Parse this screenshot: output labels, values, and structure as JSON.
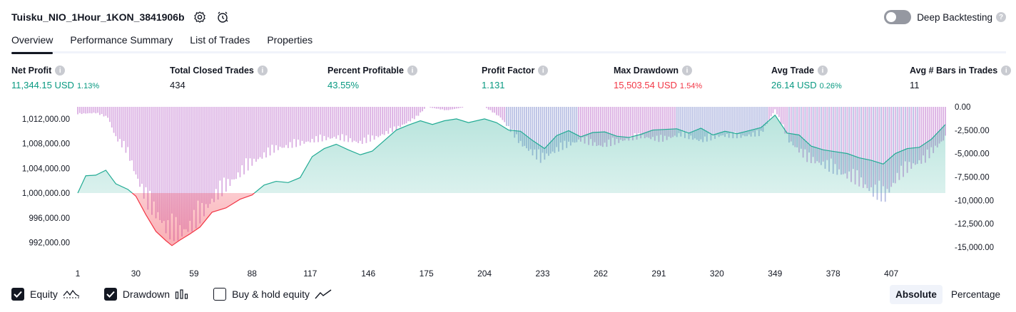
{
  "header": {
    "strategy_name": "Tuisku_NIO_1Hour_1KON_3841906b",
    "deep_backtesting_label": "Deep Backtesting",
    "deep_backtesting_enabled": false
  },
  "tabs": [
    {
      "label": "Overview",
      "active": true
    },
    {
      "label": "Performance Summary",
      "active": false
    },
    {
      "label": "List of Trades",
      "active": false
    },
    {
      "label": "Properties",
      "active": false
    }
  ],
  "metrics": {
    "net_profit": {
      "label": "Net Profit",
      "value": "11,344.15 USD",
      "percent": "1.13%"
    },
    "total_closed_trades": {
      "label": "Total Closed Trades",
      "value": "434"
    },
    "percent_profitable": {
      "label": "Percent Profitable",
      "value": "43.55%"
    },
    "profit_factor": {
      "label": "Profit Factor",
      "value": "1.131"
    },
    "max_drawdown": {
      "label": "Max Drawdown",
      "value": "15,503.54 USD",
      "percent": "1.54%"
    },
    "avg_trade": {
      "label": "Avg Trade",
      "value": "26.14 USD",
      "percent": "0.26%"
    },
    "avg_bars": {
      "label": "Avg # Bars in Trades",
      "value": "11"
    }
  },
  "colors": {
    "positive": "#089981",
    "negative": "#f23645",
    "drawdown_bar": "#ce93d8",
    "drawdown_bar_blue": "#9fa8da",
    "equity_line_up": "#22ab94",
    "equity_line_down": "#f23645"
  },
  "chart_data": {
    "type": "area",
    "left_axis": {
      "label": "Equity",
      "tick_labels": [
        "1,012,000.00",
        "1,008,000.00",
        "1,004,000.00",
        "1,000,000.00",
        "996,000.00",
        "992,000.00"
      ],
      "ticks": [
        1012000,
        1008000,
        1004000,
        1000000,
        996000,
        992000
      ],
      "ylim": [
        989750,
        1013950
      ],
      "baseline": 1000000
    },
    "right_axis": {
      "label": "Drawdown",
      "tick_labels": [
        "0.00",
        "-2,500.00",
        "-5,000.00",
        "-7,500.00",
        "-10,000.00",
        "-12,500.00",
        "-15,000.00"
      ],
      "ticks": [
        0,
        -2500,
        -5000,
        -7500,
        -10000,
        -12500,
        -15000
      ],
      "ylim": [
        -16000,
        0
      ]
    },
    "x_axis": {
      "tick_labels": [
        "1",
        "30",
        "59",
        "88",
        "117",
        "146",
        "175",
        "204",
        "233",
        "262",
        "291",
        "320",
        "349",
        "378",
        "407"
      ],
      "ticks": [
        1,
        30,
        59,
        88,
        117,
        146,
        175,
        204,
        233,
        262,
        291,
        320,
        349,
        378,
        407
      ],
      "xlim": [
        1,
        434
      ]
    },
    "series": [
      {
        "name": "Equity",
        "x": [
          1,
          5,
          10,
          15,
          20,
          26,
          30,
          35,
          40,
          45,
          48,
          52,
          57,
          62,
          68,
          75,
          82,
          88,
          94,
          100,
          106,
          112,
          118,
          124,
          130,
          136,
          142,
          148,
          154,
          160,
          166,
          172,
          178,
          184,
          190,
          196,
          204,
          210,
          216,
          222,
          228,
          234,
          240,
          246,
          252,
          258,
          264,
          270,
          276,
          282,
          288,
          294,
          300,
          306,
          312,
          318,
          324,
          330,
          336,
          342,
          349,
          355,
          361,
          367,
          373,
          379,
          385,
          391,
          397,
          403,
          409,
          415,
          421,
          427,
          434
        ],
        "values": [
          1000000,
          1002800,
          1002900,
          1003700,
          1001500,
          1000600,
          999500,
          996500,
          993800,
          992300,
          991500,
          992400,
          993400,
          994500,
          996900,
          997600,
          999000,
          999700,
          1001300,
          1001900,
          1001700,
          1002500,
          1005900,
          1007200,
          1007900,
          1007000,
          1006200,
          1006800,
          1008500,
          1010200,
          1011000,
          1011700,
          1011100,
          1011700,
          1012000,
          1011400,
          1012000,
          1011400,
          1010200,
          1010000,
          1008500,
          1007200,
          1009300,
          1010100,
          1009100,
          1009800,
          1009900,
          1009200,
          1009000,
          1009500,
          1010200,
          1010300,
          1010400,
          1009700,
          1010500,
          1009400,
          1010000,
          1009600,
          1010100,
          1010600,
          1012600,
          1009700,
          1009400,
          1007600,
          1007000,
          1006700,
          1006400,
          1005700,
          1005300,
          1004700,
          1006400,
          1007200,
          1007400,
          1008700,
          1011100
        ]
      },
      {
        "name": "Drawdown",
        "x": [
          1,
          10,
          16,
          20,
          26,
          30,
          36,
          42,
          46,
          52,
          57,
          62,
          70,
          78,
          88,
          100,
          112,
          120,
          130,
          142,
          150,
          160,
          170,
          175,
          185,
          195,
          204,
          212,
          222,
          232,
          242,
          252,
          262,
          272,
          282,
          292,
          302,
          312,
          322,
          332,
          342,
          349,
          356,
          365,
          372,
          380,
          390,
          398,
          404,
          410,
          416,
          424,
          434
        ],
        "values": [
          -800,
          -700,
          -1200,
          -3500,
          -5200,
          -7800,
          -11000,
          -12800,
          -14200,
          -14500,
          -13800,
          -12500,
          -10200,
          -8500,
          -6400,
          -4800,
          -4200,
          -3800,
          -3500,
          -4100,
          -3500,
          -2500,
          -1200,
          0,
          -400,
          0,
          0,
          -1200,
          -4200,
          -6000,
          -4700,
          -3800,
          -4500,
          -3900,
          -3400,
          -3800,
          -3200,
          -3900,
          -3300,
          -3400,
          -3100,
          -300,
          -3900,
          -5900,
          -6500,
          -7400,
          -8400,
          -9800,
          -10300,
          -8100,
          -6900,
          -6000,
          -3500
        ]
      }
    ],
    "legend": [
      {
        "label": "Equity",
        "checked": true,
        "icon": "equity-wave-icon"
      },
      {
        "label": "Drawdown",
        "checked": true,
        "icon": "drawdown-bars-icon"
      },
      {
        "label": "Buy & hold equity",
        "checked": false,
        "icon": "trend-line-icon"
      }
    ],
    "grid": false,
    "legend_placement": "bottom-left"
  },
  "mode_switch": {
    "absolute_label": "Absolute",
    "percentage_label": "Percentage",
    "selected": "Absolute"
  }
}
